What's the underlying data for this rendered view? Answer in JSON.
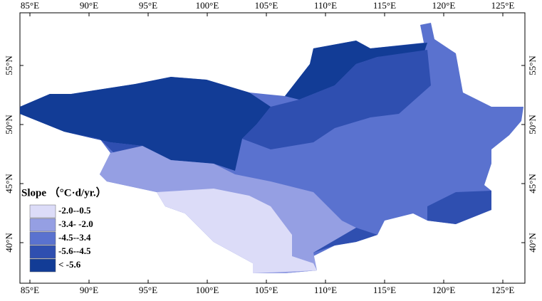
{
  "legend": {
    "title": "Slope （°C·d/yr.）",
    "items": [
      {
        "label": "-2.0--0.5",
        "color": "#dcdcf8"
      },
      {
        "label": "-3.4- -2.0",
        "color": "#959fe3"
      },
      {
        "label": "-4.5--3.4",
        "color": "#5a72cf"
      },
      {
        "label": "-5.6--4.5",
        "color": "#2f4fb0"
      },
      {
        "label": "< -5.6",
        "color": "#123c96"
      }
    ]
  },
  "lon_ticks": [
    {
      "value": 85,
      "label": "85°E"
    },
    {
      "value": 90,
      "label": "90°E"
    },
    {
      "value": 95,
      "label": "95°E"
    },
    {
      "value": 100,
      "label": "100°E"
    },
    {
      "value": 105,
      "label": "105°E"
    },
    {
      "value": 110,
      "label": "110°E"
    },
    {
      "value": 115,
      "label": "115°E"
    },
    {
      "value": 120,
      "label": "120°E"
    },
    {
      "value": 125,
      "label": "125°E"
    }
  ],
  "lat_ticks": [
    {
      "value": 55,
      "label": "55°N"
    },
    {
      "value": 50,
      "label": "50°N"
    },
    {
      "value": 45,
      "label": "45°N"
    },
    {
      "value": 40,
      "label": "40°N"
    }
  ]
}
